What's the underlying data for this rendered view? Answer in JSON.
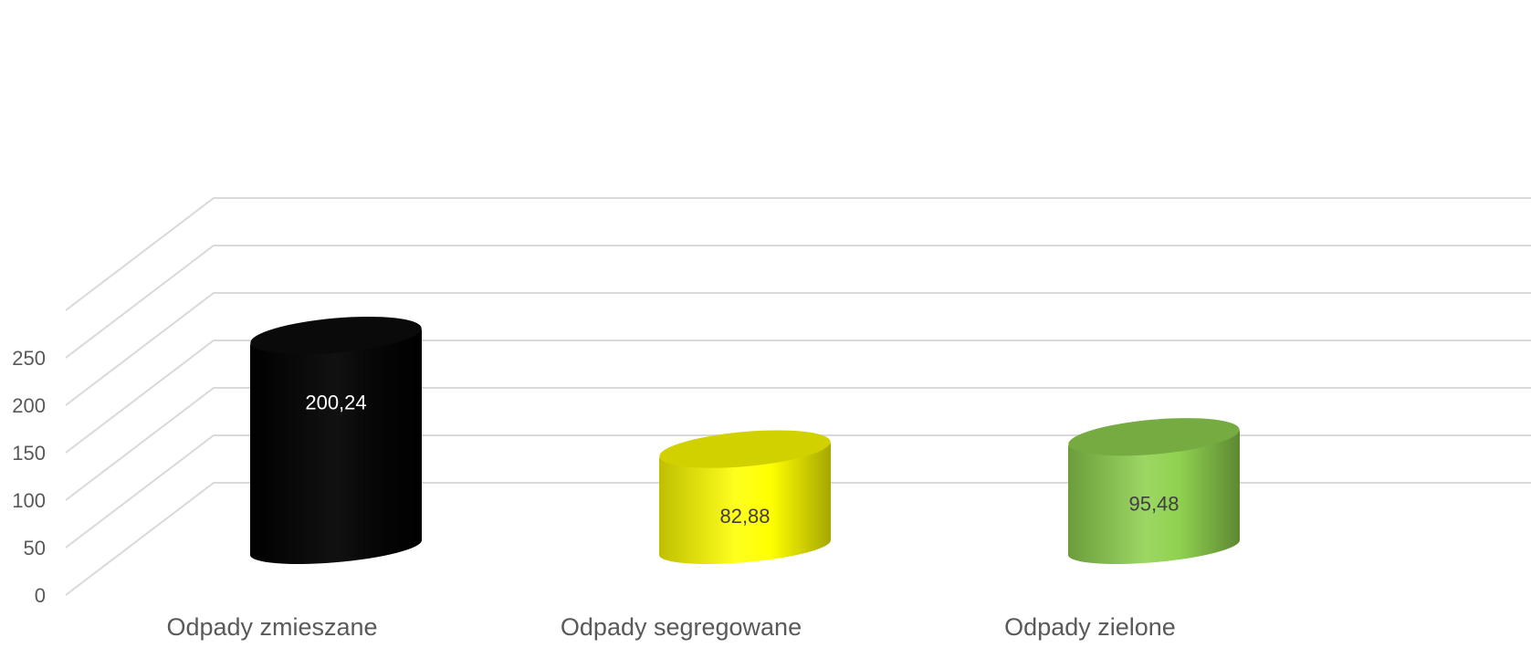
{
  "chart_data": {
    "type": "bar",
    "style": "3d-cylinder",
    "categories": [
      "Odpady zmieszane",
      "Odpady segregowane",
      "Odpady zielone"
    ],
    "values": [
      200.24,
      82.88,
      95.48
    ],
    "value_labels": [
      "200,24",
      "82,88",
      "95,48"
    ],
    "colors": [
      "#000000",
      "#ffff00",
      "#8fd14f"
    ],
    "label_colors": [
      "#ffffff",
      "#404040",
      "#404040"
    ],
    "y_ticks": [
      0,
      50,
      100,
      150,
      200,
      250
    ],
    "ylim": [
      0,
      250
    ],
    "grid": true,
    "legend": "none",
    "title": "",
    "xlabel": "",
    "ylabel": ""
  }
}
